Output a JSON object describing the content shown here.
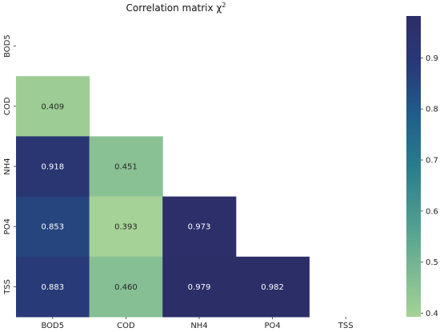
{
  "chart_data": {
    "type": "heatmap",
    "title": "Correlation matrix χ",
    "title_superscript": "2",
    "row_labels": [
      "BOD5",
      "COD",
      "NH4",
      "PO4",
      "TSS"
    ],
    "col_labels": [
      "BOD5",
      "COD",
      "NH4",
      "PO4",
      "TSS"
    ],
    "values": [
      [
        null,
        null,
        null,
        null,
        null
      ],
      [
        0.409,
        null,
        null,
        null,
        null
      ],
      [
        0.918,
        0.451,
        null,
        null,
        null
      ],
      [
        0.853,
        0.393,
        0.973,
        null,
        null
      ],
      [
        0.883,
        0.46,
        0.979,
        0.982,
        null
      ]
    ],
    "value_labels": [
      [
        null,
        null,
        null,
        null,
        null
      ],
      [
        "0.409",
        null,
        null,
        null,
        null
      ],
      [
        "0.918",
        "0.451",
        null,
        null,
        null
      ],
      [
        "0.853",
        "0.393",
        "0.973",
        null,
        null
      ],
      [
        "0.883",
        "0.460",
        "0.979",
        "0.982",
        null
      ]
    ],
    "mask": "upper triangle including diagonal",
    "colorbar": {
      "range": [
        0.393,
        0.982
      ],
      "ticks": [
        0.4,
        0.5,
        0.6,
        0.7,
        0.8,
        0.9
      ],
      "tick_labels": [
        "0.4",
        "0.5",
        "0.6",
        "0.7",
        "0.8",
        "0.9"
      ],
      "colormap": "crest",
      "color_stops": [
        "#a5d296",
        "#76b692",
        "#4a9a8f",
        "#277d8c",
        "#215e8b",
        "#283a78",
        "#2c2e68"
      ]
    },
    "grid": false,
    "legend": "colorbar right"
  }
}
